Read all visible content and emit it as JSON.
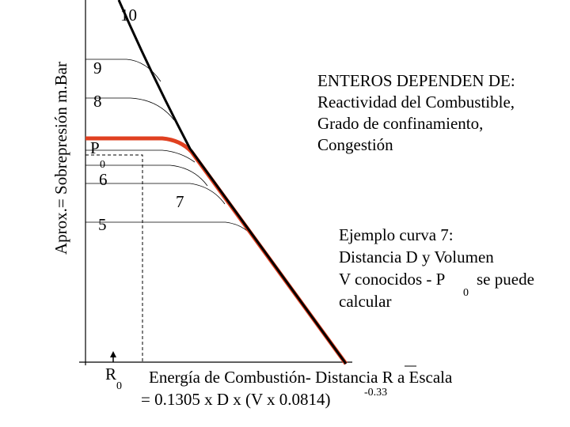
{
  "axis": {
    "y_label": "Aprox.= Sobrepresión m.Bar",
    "curve_labels": [
      "10",
      "9",
      "8",
      "6",
      "5",
      "7"
    ],
    "p0": {
      "base": "P",
      "sub": "0"
    },
    "r0": {
      "base": "R",
      "sub": "0"
    }
  },
  "notes": {
    "header": [
      "ENTEROS DEPENDEN DE:",
      "Reactividad del Combustible,",
      "Grado de confinamiento,",
      "Congestión"
    ],
    "example": {
      "line1": "Ejemplo curva 7:",
      "line2": "Distancia D y Volumen",
      "line3_before": "V conocidos - P",
      "line3_sub": "0",
      "line3_after": "se puede",
      "line4": "calcular"
    }
  },
  "formula": {
    "line1": "Energía de Combustión- Distancia R a Escala",
    "line2": "= 0.1305 x D x (V x 0.0814)",
    "exponent": "-0.33"
  }
}
